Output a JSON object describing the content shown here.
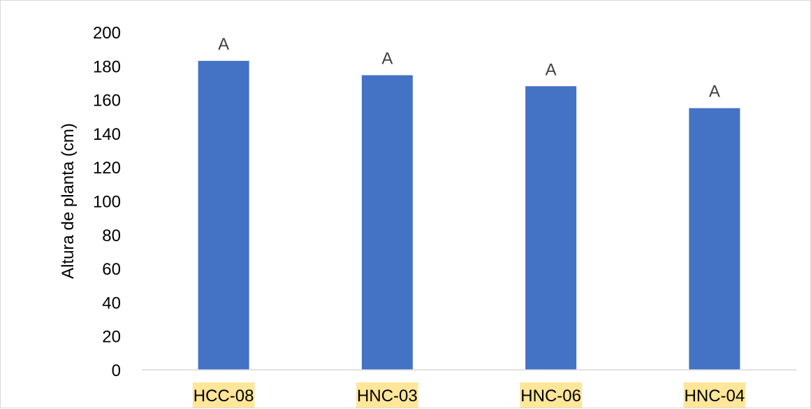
{
  "chart_data": {
    "type": "bar",
    "title": "",
    "xlabel": "",
    "ylabel": "Altura de planta (cm)",
    "categories": [
      "HCC-08",
      "HNC-03",
      "HNC-06",
      "HNC-04"
    ],
    "values": [
      183,
      174.5,
      168,
      155
    ],
    "data_labels": [
      "A",
      "A",
      "A",
      "A"
    ],
    "ylim": [
      0,
      200
    ],
    "yticks": [
      0,
      20,
      40,
      60,
      80,
      100,
      120,
      140,
      160,
      180,
      200
    ],
    "grid": false,
    "legend": "none",
    "colors": {
      "bar": "#4472C4",
      "category_label_highlight": "#FFE699",
      "axis_line": "#d9d9d9"
    }
  }
}
